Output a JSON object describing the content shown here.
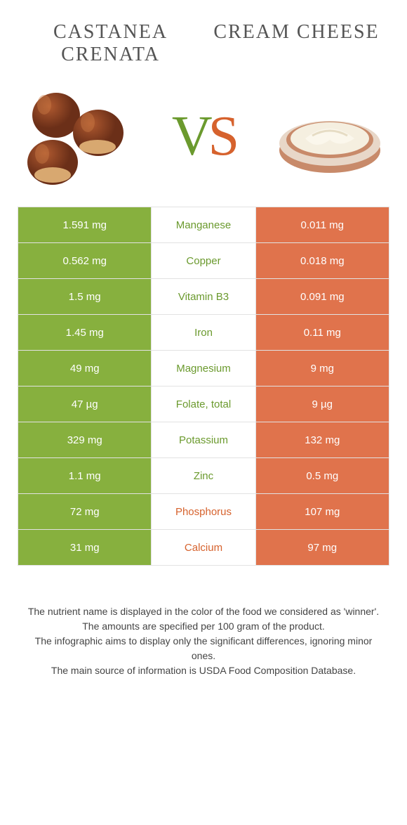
{
  "colors": {
    "left_bg": "#87b03e",
    "right_bg": "#e0734c",
    "left_text": "#6b9a2e",
    "right_text": "#d6622d",
    "neutral_bg": "#ffffff",
    "border": "#e2e2e2",
    "body_text": "#444444"
  },
  "header": {
    "left_name": "Castanea crenata",
    "right_name": "Cream cheese",
    "vs_v": "V",
    "vs_s": "S"
  },
  "rows": [
    {
      "left": "1.591 mg",
      "nutrient": "Manganese",
      "right": "0.011 mg",
      "winner": "left"
    },
    {
      "left": "0.562 mg",
      "nutrient": "Copper",
      "right": "0.018 mg",
      "winner": "left"
    },
    {
      "left": "1.5 mg",
      "nutrient": "Vitamin B3",
      "right": "0.091 mg",
      "winner": "left"
    },
    {
      "left": "1.45 mg",
      "nutrient": "Iron",
      "right": "0.11 mg",
      "winner": "left"
    },
    {
      "left": "49 mg",
      "nutrient": "Magnesium",
      "right": "9 mg",
      "winner": "left"
    },
    {
      "left": "47 µg",
      "nutrient": "Folate, total",
      "right": "9 µg",
      "winner": "left"
    },
    {
      "left": "329 mg",
      "nutrient": "Potassium",
      "right": "132 mg",
      "winner": "left"
    },
    {
      "left": "1.1 mg",
      "nutrient": "Zinc",
      "right": "0.5 mg",
      "winner": "left"
    },
    {
      "left": "72 mg",
      "nutrient": "Phosphorus",
      "right": "107 mg",
      "winner": "right"
    },
    {
      "left": "31 mg",
      "nutrient": "Calcium",
      "right": "97 mg",
      "winner": "right"
    }
  ],
  "footer": {
    "l1": "The nutrient name is displayed in the color of the food we considered as 'winner'.",
    "l2": "The amounts are specified per 100 gram of the product.",
    "l3": "The infographic aims to display only the significant differences, ignoring minor ones.",
    "l4": "The main source of information is USDA Food Composition Database."
  },
  "illustration": {
    "chestnut_main": "#6b2f18",
    "chestnut_light": "#a14d2a",
    "chestnut_base": "#d8a870",
    "bowl_rim": "#c88a6a",
    "bowl_body": "#e8d7c8",
    "cream": "#f5efe0"
  }
}
